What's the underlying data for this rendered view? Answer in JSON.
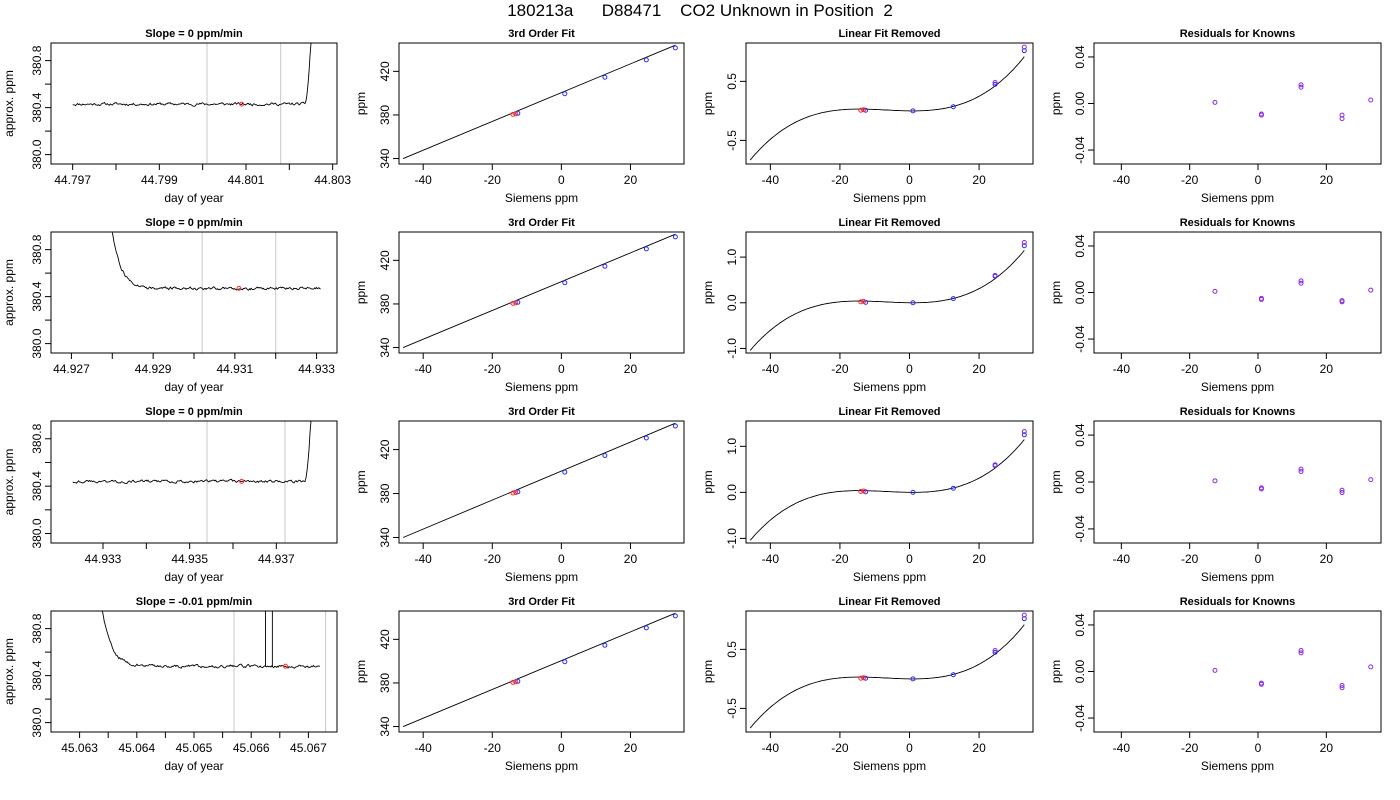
{
  "title": "180213a      D88471    CO2 Unknown in Position  2",
  "chart_data": [
    {
      "type": "line",
      "panel": "trace",
      "row": 1,
      "title": "Slope =  0  ppm/min",
      "xlabel": "day of year",
      "ylabel": "approx. ppm",
      "xlim": [
        44.7965,
        44.8031
      ],
      "ylim": [
        379.92,
        380.95
      ],
      "xticks": [
        44.797,
        44.799,
        44.801,
        44.803
      ],
      "xticklabels": [
        "44.797",
        "44.799",
        "44.801",
        "44.803"
      ],
      "yticks": [
        380.0,
        380.4,
        380.8
      ],
      "yticklabels": [
        "380.0",
        "380.4",
        "380.8"
      ],
      "markers": [
        44.8001,
        44.8018
      ],
      "trace": {
        "x0": 44.797,
        "x1": 44.8025,
        "level": 380.43,
        "noise": 0.012,
        "seed": 11,
        "tail": {
          "at": 44.80235,
          "to": 380.95
        }
      },
      "point": {
        "x": 44.8009,
        "y": 380.43
      }
    },
    {
      "type": "scatter",
      "panel": "fit",
      "row": 1,
      "title": "3rd Order Fit",
      "xlabel": "Siemens ppm",
      "ylabel": "ppm",
      "xlim": [
        -47,
        35.5
      ],
      "ylim": [
        335,
        446
      ],
      "xticks": [
        -40,
        -20,
        0,
        20
      ],
      "xticklabels": [
        "-40",
        "-20",
        "0",
        "20"
      ],
      "yticks": [
        340,
        380,
        420
      ],
      "yticklabels": [
        "340",
        "380",
        "420"
      ],
      "line": [
        [
          -45.8,
          340
        ],
        [
          33,
          444
        ]
      ],
      "knowns": [
        [
          -12.6,
          381.5
        ],
        [
          1,
          399.5
        ],
        [
          12.6,
          414.6
        ],
        [
          24.6,
          430.5
        ],
        [
          33,
          441.5
        ]
      ],
      "unknowns": [
        [
          -14,
          380.5
        ],
        [
          -13.2,
          381
        ]
      ]
    },
    {
      "type": "scatter",
      "panel": "linear-removed",
      "row": 1,
      "title": "Linear Fit Removed",
      "xlabel": "Siemens ppm",
      "ylabel": "ppm",
      "xlim": [
        -47,
        35.5
      ],
      "ylim": [
        -0.9,
        1.15
      ],
      "xticks": [
        -40,
        -20,
        0,
        20
      ],
      "xticklabels": [
        "-40",
        "-20",
        "0",
        "20"
      ],
      "yticks": [
        -0.5,
        0.5
      ],
      "yticklabels": [
        "-0.5",
        "0.5"
      ],
      "curve": {
        "from": -45.8,
        "to": 33,
        "scale": 1.0
      },
      "knowns": [
        [
          -12.6,
          0.01
        ],
        [
          1,
          0
        ],
        [
          12.6,
          0.07
        ],
        [
          24.6,
          0.45
        ],
        [
          33,
          1.02
        ]
      ],
      "unknowns": [
        [
          -14,
          0.01
        ],
        [
          -13.2,
          0.02
        ]
      ],
      "extra": [
        [
          33,
          1.08
        ],
        [
          24.6,
          0.48
        ]
      ]
    },
    {
      "type": "scatter",
      "panel": "residuals",
      "row": 1,
      "title": "Residuals for Knowns",
      "xlabel": "Siemens ppm",
      "ylabel": "ppm",
      "xlim": [
        -48,
        36
      ],
      "ylim": [
        -0.052,
        0.052
      ],
      "xticks": [
        -40,
        -20,
        0,
        20
      ],
      "xticklabels": [
        "-40",
        "-20",
        "0",
        "20"
      ],
      "yticks": [
        -0.04,
        0,
        0.04
      ],
      "yticklabels": [
        "-0.04",
        "0.00",
        "0.04"
      ],
      "knowns": [
        [
          -12.6,
          0.001
        ],
        [
          1,
          -0.009
        ],
        [
          1,
          -0.01
        ],
        [
          12.6,
          0.016
        ],
        [
          12.6,
          0.014
        ],
        [
          24.6,
          -0.01
        ],
        [
          24.6,
          -0.013
        ],
        [
          33,
          0.003
        ]
      ]
    },
    {
      "type": "line",
      "panel": "trace",
      "row": 2,
      "title": "Slope =  0  ppm/min",
      "xlabel": "day of year",
      "ylabel": "approx. ppm",
      "xlim": [
        44.9265,
        44.9335
      ],
      "ylim": [
        379.92,
        380.95
      ],
      "xticks": [
        44.927,
        44.929,
        44.931,
        44.933
      ],
      "xticklabels": [
        "44.927",
        "44.929",
        "44.931",
        "44.933"
      ],
      "yticks": [
        380.0,
        380.4,
        380.8
      ],
      "yticklabels": [
        "380.0",
        "380.4",
        "380.8"
      ],
      "markers": [
        44.9302,
        44.932
      ],
      "trace": {
        "x0": 44.928,
        "x1": 44.9331,
        "level": 380.47,
        "noise": 0.012,
        "seed": 27,
        "head": {
          "from": 380.95,
          "decay": 0.00022
        }
      },
      "point": {
        "x": 44.9311,
        "y": 380.47
      }
    },
    {
      "type": "scatter",
      "panel": "fit",
      "row": 2,
      "title": "3rd Order Fit",
      "xlabel": "Siemens ppm",
      "ylabel": "ppm",
      "xlim": [
        -47,
        35.5
      ],
      "ylim": [
        335,
        446
      ],
      "xticks": [
        -40,
        -20,
        0,
        20
      ],
      "xticklabels": [
        "-40",
        "-20",
        "0",
        "20"
      ],
      "yticks": [
        340,
        380,
        420
      ],
      "yticklabels": [
        "340",
        "380",
        "420"
      ],
      "line": [
        [
          -45.8,
          340
        ],
        [
          33,
          444
        ]
      ],
      "knowns": [
        [
          -12.6,
          381.5
        ],
        [
          1,
          399.5
        ],
        [
          12.6,
          414.6
        ],
        [
          24.6,
          430.5
        ],
        [
          33,
          441.5
        ]
      ],
      "unknowns": [
        [
          -14,
          380.5
        ],
        [
          -13.2,
          381
        ]
      ]
    },
    {
      "type": "scatter",
      "panel": "linear-removed",
      "row": 2,
      "title": "Linear Fit Removed",
      "xlabel": "Siemens ppm",
      "ylabel": "ppm",
      "xlim": [
        -47,
        35.5
      ],
      "ylim": [
        -1.1,
        1.55
      ],
      "xticks": [
        -40,
        -20,
        0,
        20
      ],
      "xticklabels": [
        "-40",
        "-20",
        "0",
        "20"
      ],
      "yticks": [
        -1.0,
        0.0,
        1.0
      ],
      "yticklabels": [
        "-1.0",
        "0.0",
        "1.0"
      ],
      "curve": {
        "from": -45.8,
        "to": 33,
        "scale": 1.25
      },
      "knowns": [
        [
          -12.6,
          0.01
        ],
        [
          1,
          0
        ],
        [
          12.6,
          0.09
        ],
        [
          24.6,
          0.58
        ],
        [
          33,
          1.25
        ]
      ],
      "unknowns": [
        [
          -14,
          0.02
        ],
        [
          -13.2,
          0.03
        ]
      ],
      "extra": [
        [
          33,
          1.32
        ],
        [
          24.6,
          0.6
        ]
      ]
    },
    {
      "type": "scatter",
      "panel": "residuals",
      "row": 2,
      "title": "Residuals for Knowns",
      "xlabel": "Siemens ppm",
      "ylabel": "ppm",
      "xlim": [
        -48,
        36
      ],
      "ylim": [
        -0.052,
        0.052
      ],
      "xticks": [
        -40,
        -20,
        0,
        20
      ],
      "xticklabels": [
        "-40",
        "-20",
        "0",
        "20"
      ],
      "yticks": [
        -0.04,
        0,
        0.04
      ],
      "yticklabels": [
        "-0.04",
        "0.00",
        "0.04"
      ],
      "knowns": [
        [
          -12.6,
          0.001
        ],
        [
          1,
          -0.005
        ],
        [
          1,
          -0.006
        ],
        [
          12.6,
          0.01
        ],
        [
          12.6,
          0.008
        ],
        [
          24.6,
          -0.007
        ],
        [
          24.6,
          -0.008
        ],
        [
          33,
          0.002
        ]
      ]
    },
    {
      "type": "line",
      "panel": "trace",
      "row": 3,
      "title": "Slope =  0  ppm/min",
      "xlabel": "day of year",
      "ylabel": "approx. ppm",
      "xlim": [
        44.9318,
        44.9384
      ],
      "ylim": [
        379.92,
        380.95
      ],
      "xticks": [
        44.933,
        44.935,
        44.937
      ],
      "xticklabels": [
        "44.933",
        "44.935",
        "44.937"
      ],
      "yticks": [
        380.0,
        380.4,
        380.8
      ],
      "yticklabels": [
        "380.0",
        "380.4",
        "380.8"
      ],
      "markers": [
        44.9354,
        44.9372
      ],
      "trace": {
        "x0": 44.9323,
        "x1": 44.9378,
        "level": 380.44,
        "noise": 0.012,
        "seed": 43,
        "tail": {
          "at": 44.93765,
          "to": 380.95
        }
      },
      "point": {
        "x": 44.9362,
        "y": 380.44
      }
    },
    {
      "type": "scatter",
      "panel": "fit",
      "row": 3,
      "title": "3rd Order Fit",
      "xlabel": "Siemens ppm",
      "ylabel": "ppm",
      "xlim": [
        -47,
        35.5
      ],
      "ylim": [
        335,
        446
      ],
      "xticks": [
        -40,
        -20,
        0,
        20
      ],
      "xticklabels": [
        "-40",
        "-20",
        "0",
        "20"
      ],
      "yticks": [
        340,
        380,
        420
      ],
      "yticklabels": [
        "340",
        "380",
        "420"
      ],
      "line": [
        [
          -45.8,
          340
        ],
        [
          33,
          444
        ]
      ],
      "knowns": [
        [
          -12.6,
          381.5
        ],
        [
          1,
          399.5
        ],
        [
          12.6,
          414.6
        ],
        [
          24.6,
          430.5
        ],
        [
          33,
          441.5
        ]
      ],
      "unknowns": [
        [
          -14,
          380.5
        ],
        [
          -13.2,
          381
        ]
      ]
    },
    {
      "type": "scatter",
      "panel": "linear-removed",
      "row": 3,
      "title": "Linear Fit Removed",
      "xlabel": "Siemens ppm",
      "ylabel": "ppm",
      "xlim": [
        -47,
        35.5
      ],
      "ylim": [
        -1.1,
        1.55
      ],
      "xticks": [
        -40,
        -20,
        0,
        20
      ],
      "xticklabels": [
        "-40",
        "-20",
        "0",
        "20"
      ],
      "yticks": [
        -1.0,
        0.0,
        1.0
      ],
      "yticklabels": [
        "-1.0",
        "0.0",
        "1.0"
      ],
      "curve": {
        "from": -45.8,
        "to": 33,
        "scale": 1.25
      },
      "knowns": [
        [
          -12.6,
          0.01
        ],
        [
          1,
          0
        ],
        [
          12.6,
          0.09
        ],
        [
          24.6,
          0.58
        ],
        [
          33,
          1.25
        ]
      ],
      "unknowns": [
        [
          -14,
          0.02
        ],
        [
          -13.2,
          0.03
        ]
      ],
      "extra": [
        [
          33,
          1.32
        ],
        [
          24.6,
          0.6
        ]
      ]
    },
    {
      "type": "scatter",
      "panel": "residuals",
      "row": 3,
      "title": "Residuals for Knowns",
      "xlabel": "Siemens ppm",
      "ylabel": "ppm",
      "xlim": [
        -48,
        36
      ],
      "ylim": [
        -0.052,
        0.052
      ],
      "xticks": [
        -40,
        -20,
        0,
        20
      ],
      "xticklabels": [
        "-40",
        "-20",
        "0",
        "20"
      ],
      "yticks": [
        -0.04,
        0,
        0.04
      ],
      "yticklabels": [
        "-0.04",
        "0.00",
        "0.04"
      ],
      "knowns": [
        [
          -12.6,
          0.001
        ],
        [
          1,
          -0.005
        ],
        [
          1,
          -0.006
        ],
        [
          12.6,
          0.011
        ],
        [
          12.6,
          0.009
        ],
        [
          24.6,
          -0.007
        ],
        [
          24.6,
          -0.009
        ],
        [
          33,
          0.002
        ]
      ]
    },
    {
      "type": "line",
      "panel": "trace",
      "row": 4,
      "title": "Slope =  -0.01  ppm/min",
      "xlabel": "day of year",
      "ylabel": "approx. ppm",
      "xlim": [
        45.0625,
        45.0675
      ],
      "ylim": [
        379.92,
        380.95
      ],
      "xticks": [
        45.063,
        45.064,
        45.065,
        45.066,
        45.067
      ],
      "xticklabels": [
        "45.063",
        "45.064",
        "45.065",
        "45.066",
        "45.067"
      ],
      "yticks": [
        380.0,
        380.4,
        380.8
      ],
      "yticklabels": [
        "380.0",
        "380.4",
        "380.8"
      ],
      "markers": [
        45.0657,
        45.0673
      ],
      "trace": {
        "x0": 45.0634,
        "x1": 45.0672,
        "level": 380.48,
        "noise": 0.012,
        "seed": 59,
        "head": {
          "from": 380.95,
          "decay": 0.00016
        },
        "spikes": [
          45.06625,
          45.06637
        ]
      },
      "point": {
        "x": 45.0666,
        "y": 380.48
      }
    },
    {
      "type": "scatter",
      "panel": "fit",
      "row": 4,
      "title": "3rd Order Fit",
      "xlabel": "Siemens ppm",
      "ylabel": "ppm",
      "xlim": [
        -47,
        35.5
      ],
      "ylim": [
        335,
        446
      ],
      "xticks": [
        -40,
        -20,
        0,
        20
      ],
      "xticklabels": [
        "-40",
        "-20",
        "0",
        "20"
      ],
      "yticks": [
        340,
        380,
        420
      ],
      "yticklabels": [
        "340",
        "380",
        "420"
      ],
      "line": [
        [
          -45.8,
          340
        ],
        [
          33,
          444
        ]
      ],
      "knowns": [
        [
          -12.6,
          381.5
        ],
        [
          1,
          399.5
        ],
        [
          12.6,
          414.6
        ],
        [
          24.6,
          430.5
        ],
        [
          33,
          441.5
        ]
      ],
      "unknowns": [
        [
          -14,
          380.5
        ],
        [
          -13.2,
          381
        ]
      ]
    },
    {
      "type": "scatter",
      "panel": "linear-removed",
      "row": 4,
      "title": "Linear Fit Removed",
      "xlabel": "Siemens ppm",
      "ylabel": "ppm",
      "xlim": [
        -47,
        35.5
      ],
      "ylim": [
        -0.9,
        1.15
      ],
      "xticks": [
        -40,
        -20,
        0,
        20
      ],
      "xticklabels": [
        "-40",
        "-20",
        "0",
        "20"
      ],
      "yticks": [
        -0.5,
        0.5
      ],
      "yticklabels": [
        "-0.5",
        "0.5"
      ],
      "curve": {
        "from": -45.8,
        "to": 33,
        "scale": 1.0
      },
      "knowns": [
        [
          -12.6,
          0.01
        ],
        [
          1,
          0
        ],
        [
          12.6,
          0.07
        ],
        [
          24.6,
          0.45
        ],
        [
          33,
          1.02
        ]
      ],
      "unknowns": [
        [
          -14,
          0.01
        ],
        [
          -13.2,
          0.02
        ]
      ],
      "extra": [
        [
          33,
          1.08
        ],
        [
          24.6,
          0.48
        ]
      ]
    },
    {
      "type": "scatter",
      "panel": "residuals",
      "row": 4,
      "title": "Residuals for Knowns",
      "xlabel": "Siemens ppm",
      "ylabel": "ppm",
      "xlim": [
        -48,
        36
      ],
      "ylim": [
        -0.052,
        0.052
      ],
      "xticks": [
        -40,
        -20,
        0,
        20
      ],
      "xticklabels": [
        "-40",
        "-20",
        "0",
        "20"
      ],
      "yticks": [
        -0.04,
        0,
        0.04
      ],
      "yticklabels": [
        "-0.04",
        "0.00",
        "0.04"
      ],
      "knowns": [
        [
          -12.6,
          0.001
        ],
        [
          1,
          -0.01
        ],
        [
          1,
          -0.011
        ],
        [
          12.6,
          0.018
        ],
        [
          12.6,
          0.016
        ],
        [
          24.6,
          -0.012
        ],
        [
          24.6,
          -0.014
        ],
        [
          33,
          0.004
        ]
      ]
    }
  ],
  "colors": {
    "unknown_point": "#ff2a2a",
    "known_point": "#2a2aff",
    "residual_point": "#8a2be2",
    "marker_line": "#c8c8c8",
    "axis": "#000000"
  }
}
